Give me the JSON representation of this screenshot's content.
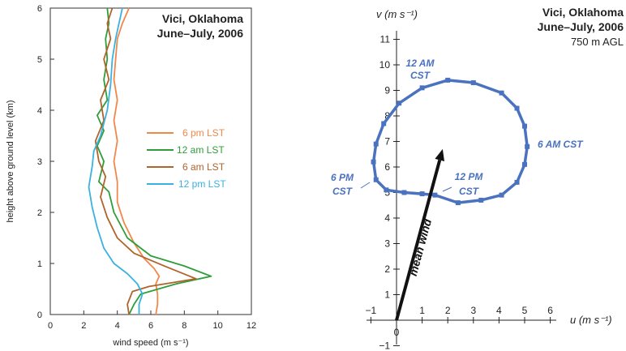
{
  "chart_data": [
    {
      "type": "line",
      "title_lines": [
        "Vici, Oklahoma",
        "June–July, 2006"
      ],
      "xlabel": "wind speed (m s⁻¹)",
      "ylabel": "height above ground level (km)",
      "xlim": [
        0,
        12
      ],
      "ylim": [
        0,
        6
      ],
      "xticks": [
        "0",
        "2",
        "4",
        "6",
        "8",
        "10",
        "12"
      ],
      "yticks": [
        "0",
        "1",
        "2",
        "3",
        "4",
        "5",
        "6"
      ],
      "legend_position": "center-right",
      "series": [
        {
          "name": "6 pm LST",
          "color": "#f0884a",
          "points": [
            [
              6.3,
              0
            ],
            [
              6.4,
              0.2
            ],
            [
              6.4,
              0.4
            ],
            [
              6.3,
              0.6
            ],
            [
              6.5,
              0.75
            ],
            [
              6.2,
              0.9
            ],
            [
              5.6,
              1.1
            ],
            [
              5.0,
              1.4
            ],
            [
              4.4,
              1.8
            ],
            [
              4.0,
              2.2
            ],
            [
              4.0,
              2.6
            ],
            [
              3.8,
              3.0
            ],
            [
              4.0,
              3.4
            ],
            [
              3.8,
              3.8
            ],
            [
              4.0,
              4.2
            ],
            [
              3.8,
              4.6
            ],
            [
              3.9,
              5.0
            ],
            [
              4.0,
              5.4
            ],
            [
              4.3,
              5.7
            ],
            [
              4.7,
              6.0
            ]
          ]
        },
        {
          "name": "12 am LST",
          "color": "#2f9e3a",
          "points": [
            [
              4.7,
              0
            ],
            [
              5.0,
              0.2
            ],
            [
              5.4,
              0.4
            ],
            [
              7.5,
              0.6
            ],
            [
              9.6,
              0.75
            ],
            [
              8.0,
              0.95
            ],
            [
              6.0,
              1.15
            ],
            [
              4.6,
              1.5
            ],
            [
              3.8,
              2.0
            ],
            [
              3.5,
              2.4
            ],
            [
              2.9,
              2.6
            ],
            [
              3.2,
              3.0
            ],
            [
              2.8,
              3.3
            ],
            [
              3.2,
              3.6
            ],
            [
              2.8,
              3.9
            ],
            [
              3.4,
              4.2
            ],
            [
              3.2,
              4.6
            ],
            [
              3.4,
              5.0
            ],
            [
              3.3,
              5.4
            ],
            [
              3.5,
              5.7
            ],
            [
              3.4,
              6.0
            ]
          ]
        },
        {
          "name": "6 am LST",
          "color": "#b0632a",
          "points": [
            [
              4.7,
              0
            ],
            [
              4.6,
              0.2
            ],
            [
              4.9,
              0.45
            ],
            [
              5.9,
              0.55
            ],
            [
              8.7,
              0.7
            ],
            [
              6.8,
              0.95
            ],
            [
              5.0,
              1.2
            ],
            [
              4.0,
              1.5
            ],
            [
              3.4,
              1.9
            ],
            [
              3.0,
              2.3
            ],
            [
              3.3,
              2.7
            ],
            [
              2.9,
              3.0
            ],
            [
              2.7,
              3.4
            ],
            [
              3.2,
              3.8
            ],
            [
              3.0,
              4.2
            ],
            [
              3.5,
              4.6
            ],
            [
              3.2,
              5.0
            ],
            [
              3.6,
              5.4
            ],
            [
              3.4,
              5.7
            ],
            [
              3.7,
              6.0
            ]
          ]
        },
        {
          "name": "12 pm LST",
          "color": "#3ab1e0",
          "points": [
            [
              5.3,
              0
            ],
            [
              5.3,
              0.2
            ],
            [
              5.5,
              0.4
            ],
            [
              5.2,
              0.6
            ],
            [
              4.6,
              0.8
            ],
            [
              3.8,
              1.0
            ],
            [
              3.2,
              1.3
            ],
            [
              2.8,
              1.7
            ],
            [
              2.5,
              2.1
            ],
            [
              2.3,
              2.5
            ],
            [
              2.5,
              2.9
            ],
            [
              2.6,
              3.2
            ],
            [
              3.0,
              3.5
            ],
            [
              3.4,
              4.0
            ],
            [
              3.6,
              4.5
            ],
            [
              3.7,
              5.0
            ],
            [
              3.9,
              5.4
            ],
            [
              4.1,
              5.7
            ],
            [
              4.3,
              6.0
            ]
          ]
        }
      ]
    },
    {
      "type": "line",
      "title_lines": [
        "Vici, Oklahoma",
        "June–July, 2006",
        "750 m AGL"
      ],
      "xlabel": "u (m s⁻¹)",
      "ylabel": "v (m s⁻¹)",
      "xlim": [
        -1,
        6
      ],
      "ylim": [
        -1,
        11
      ],
      "xticks": [
        "−1",
        "0",
        "1",
        "2",
        "3",
        "4",
        "5",
        "6"
      ],
      "yticks": [
        "−1",
        "1",
        "2",
        "3",
        "4",
        "5",
        "6",
        "7",
        "8",
        "9",
        "10",
        "11"
      ],
      "hodograph": {
        "color": "#4a72bf",
        "points": [
          [
            1.5,
            4.9
          ],
          [
            2.4,
            4.6
          ],
          [
            3.3,
            4.7
          ],
          [
            4.1,
            4.9
          ],
          [
            4.7,
            5.4
          ],
          [
            5.0,
            6.1
          ],
          [
            5.1,
            6.8
          ],
          [
            5.0,
            7.6
          ],
          [
            4.7,
            8.3
          ],
          [
            4.1,
            8.9
          ],
          [
            3.0,
            9.3
          ],
          [
            2.0,
            9.4
          ],
          [
            1.0,
            9.1
          ],
          [
            0.1,
            8.5
          ],
          [
            -0.5,
            7.7
          ],
          [
            -0.8,
            6.9
          ],
          [
            -0.9,
            6.2
          ],
          [
            -0.8,
            5.5
          ],
          [
            -0.4,
            5.1
          ],
          [
            0.3,
            5.0
          ],
          [
            1.0,
            4.95
          ],
          [
            1.5,
            4.9
          ]
        ]
      },
      "mean_wind": {
        "label": "mean wind",
        "u": 1.8,
        "v": 6.7,
        "color": "#111111"
      },
      "annotations": [
        {
          "lines": [
            "12 AM",
            "CST"
          ],
          "color": "#4a72bf"
        },
        {
          "lines": [
            "6 AM CST"
          ],
          "color": "#4a72bf"
        },
        {
          "lines": [
            "6 PM",
            "CST"
          ],
          "color": "#4a72bf"
        },
        {
          "lines": [
            "12 PM",
            "CST"
          ],
          "color": "#4a72bf"
        }
      ]
    }
  ]
}
